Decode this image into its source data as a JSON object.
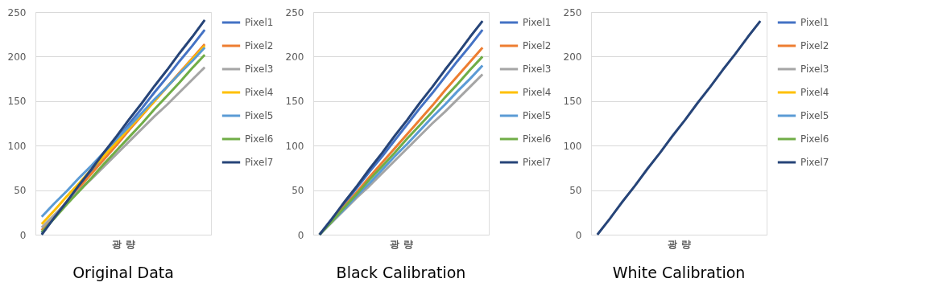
{
  "chart_data": [
    {
      "type": "line",
      "title": "Original Data",
      "xlabel": "광 량",
      "categories": [
        null,
        null,
        null,
        null,
        null,
        null,
        null,
        null,
        null,
        null,
        null,
        null,
        null,
        null
      ],
      "ylim": [
        0,
        250
      ],
      "yticks": [
        0,
        50,
        100,
        150,
        200,
        250
      ],
      "grid": "y",
      "legend": "right",
      "tick_labels": "y",
      "series": [
        {
          "name": "Pixel1",
          "color": "#4472c4",
          "values": [
            2,
            20,
            37,
            55,
            72,
            90,
            107,
            125,
            142,
            160,
            177,
            195,
            212,
            230
          ]
        },
        {
          "name": "Pixel2",
          "color": "#ed7d31",
          "values": [
            5,
            21,
            37,
            53,
            69,
            85,
            101,
            118,
            134,
            150,
            166,
            182,
            198,
            214
          ]
        },
        {
          "name": "Pixel3",
          "color": "#a5a5a5",
          "values": [
            8,
            22,
            36,
            50,
            63,
            77,
            91,
            105,
            119,
            133,
            146,
            160,
            174,
            188
          ]
        },
        {
          "name": "Pixel4",
          "color": "#ffc000",
          "values": [
            12,
            27,
            43,
            58,
            74,
            89,
            104,
            120,
            135,
            150,
            166,
            181,
            197,
            212
          ]
        },
        {
          "name": "Pixel5",
          "color": "#5b9bd5",
          "values": [
            20,
            35,
            49,
            64,
            78,
            93,
            108,
            122,
            137,
            152,
            166,
            181,
            195,
            210
          ]
        },
        {
          "name": "Pixel6",
          "color": "#70ad47",
          "values": [
            3,
            18,
            34,
            49,
            64,
            80,
            95,
            110,
            125,
            141,
            156,
            171,
            187,
            202
          ]
        },
        {
          "name": "Pixel7",
          "color": "#264478",
          "values": [
            0,
            19,
            37,
            56,
            74,
            93,
            111,
            130,
            148,
            167,
            185,
            204,
            222,
            241
          ]
        }
      ]
    },
    {
      "type": "line",
      "title": "Black Calibration",
      "xlabel": "광 량",
      "categories": [
        null,
        null,
        null,
        null,
        null,
        null,
        null,
        null,
        null,
        null,
        null,
        null,
        null,
        null
      ],
      "ylim": [
        0,
        250
      ],
      "yticks": [
        0,
        50,
        100,
        150,
        200,
        250
      ],
      "grid": "y",
      "legend": "right",
      "tick_labels": "y",
      "series": [
        {
          "name": "Pixel1",
          "color": "#4472c4",
          "values": [
            0,
            18,
            35,
            53,
            71,
            88,
            106,
            124,
            142,
            159,
            177,
            195,
            212,
            230
          ]
        },
        {
          "name": "Pixel2",
          "color": "#ed7d31",
          "values": [
            0,
            16,
            32,
            48,
            65,
            81,
            97,
            113,
            129,
            145,
            162,
            178,
            194,
            210
          ]
        },
        {
          "name": "Pixel3",
          "color": "#a5a5a5",
          "values": [
            0,
            14,
            28,
            42,
            55,
            69,
            83,
            97,
            111,
            125,
            138,
            152,
            166,
            180
          ]
        },
        {
          "name": "Pixel4",
          "color": "#ffc000",
          "values": [
            null,
            null,
            null,
            null,
            null,
            null,
            null,
            null,
            null,
            null,
            null,
            null,
            null,
            null
          ]
        },
        {
          "name": "Pixel5",
          "color": "#5b9bd5",
          "values": [
            0,
            15,
            29,
            44,
            58,
            73,
            88,
            102,
            117,
            132,
            146,
            161,
            175,
            190
          ]
        },
        {
          "name": "Pixel6",
          "color": "#70ad47",
          "values": [
            0,
            15,
            31,
            46,
            62,
            77,
            92,
            108,
            123,
            138,
            154,
            169,
            185,
            200
          ]
        },
        {
          "name": "Pixel7",
          "color": "#264478",
          "values": [
            0,
            18,
            37,
            55,
            74,
            92,
            111,
            129,
            148,
            166,
            185,
            203,
            222,
            240
          ]
        }
      ]
    },
    {
      "type": "line",
      "title": "White Calibration",
      "xlabel": "광 량",
      "categories": [
        null,
        null,
        null,
        null,
        null,
        null,
        null,
        null,
        null,
        null,
        null,
        null,
        null,
        null
      ],
      "ylim": [
        0,
        250
      ],
      "yticks": [
        0,
        50,
        100,
        150,
        200,
        250
      ],
      "grid": "y",
      "legend": "right",
      "tick_labels": "y",
      "series": [
        {
          "name": "Pixel1",
          "color": "#4472c4",
          "values": [
            null,
            null,
            null,
            null,
            null,
            null,
            null,
            null,
            null,
            null,
            null,
            null,
            null,
            null
          ]
        },
        {
          "name": "Pixel2",
          "color": "#ed7d31",
          "values": [
            null,
            null,
            null,
            null,
            null,
            null,
            null,
            null,
            null,
            null,
            null,
            null,
            null,
            null
          ]
        },
        {
          "name": "Pixel3",
          "color": "#a5a5a5",
          "values": [
            null,
            null,
            null,
            null,
            null,
            null,
            null,
            null,
            null,
            null,
            null,
            null,
            null,
            null
          ]
        },
        {
          "name": "Pixel4",
          "color": "#ffc000",
          "values": [
            null,
            null,
            null,
            null,
            null,
            null,
            null,
            null,
            null,
            null,
            null,
            null,
            null,
            null
          ]
        },
        {
          "name": "Pixel5",
          "color": "#5b9bd5",
          "values": [
            null,
            null,
            null,
            null,
            null,
            null,
            null,
            null,
            null,
            null,
            null,
            null,
            null,
            null
          ]
        },
        {
          "name": "Pixel6",
          "color": "#70ad47",
          "values": [
            null,
            null,
            null,
            null,
            null,
            null,
            null,
            null,
            null,
            null,
            null,
            null,
            null,
            null
          ]
        },
        {
          "name": "Pixel7",
          "color": "#264478",
          "values": [
            0,
            18,
            37,
            55,
            74,
            92,
            111,
            129,
            148,
            166,
            185,
            203,
            222,
            240
          ]
        }
      ]
    }
  ]
}
